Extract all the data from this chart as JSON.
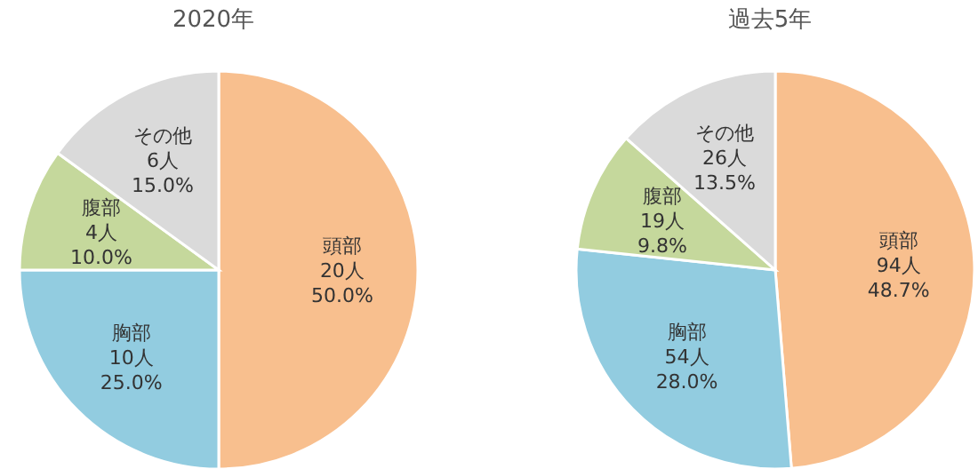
{
  "chart_data": [
    {
      "type": "pie",
      "title": "2020年",
      "categories": [
        "頭部",
        "胸部",
        "腹部",
        "その他"
      ],
      "values": [
        20,
        10,
        4,
        6
      ],
      "colors": [
        "#f8bf8e",
        "#92cce0",
        "#c5d89c",
        "#dadada"
      ],
      "value_labels": [
        "20人\n50.0%",
        "10人\n25.0%",
        "4人\n10.0%",
        "6人\n15.0%"
      ]
    },
    {
      "type": "pie",
      "title": "過去5年",
      "categories": [
        "頭部",
        "胸部",
        "腹部",
        "その他"
      ],
      "values": [
        94,
        54,
        19,
        26
      ],
      "colors": [
        "#f8bf8e",
        "#92cce0",
        "#c5d89c",
        "#dadada"
      ],
      "value_labels": [
        "94人\n48.7%",
        "54人\n28.0%",
        "19人\n9.8%",
        "26人\n13.5%"
      ]
    }
  ]
}
